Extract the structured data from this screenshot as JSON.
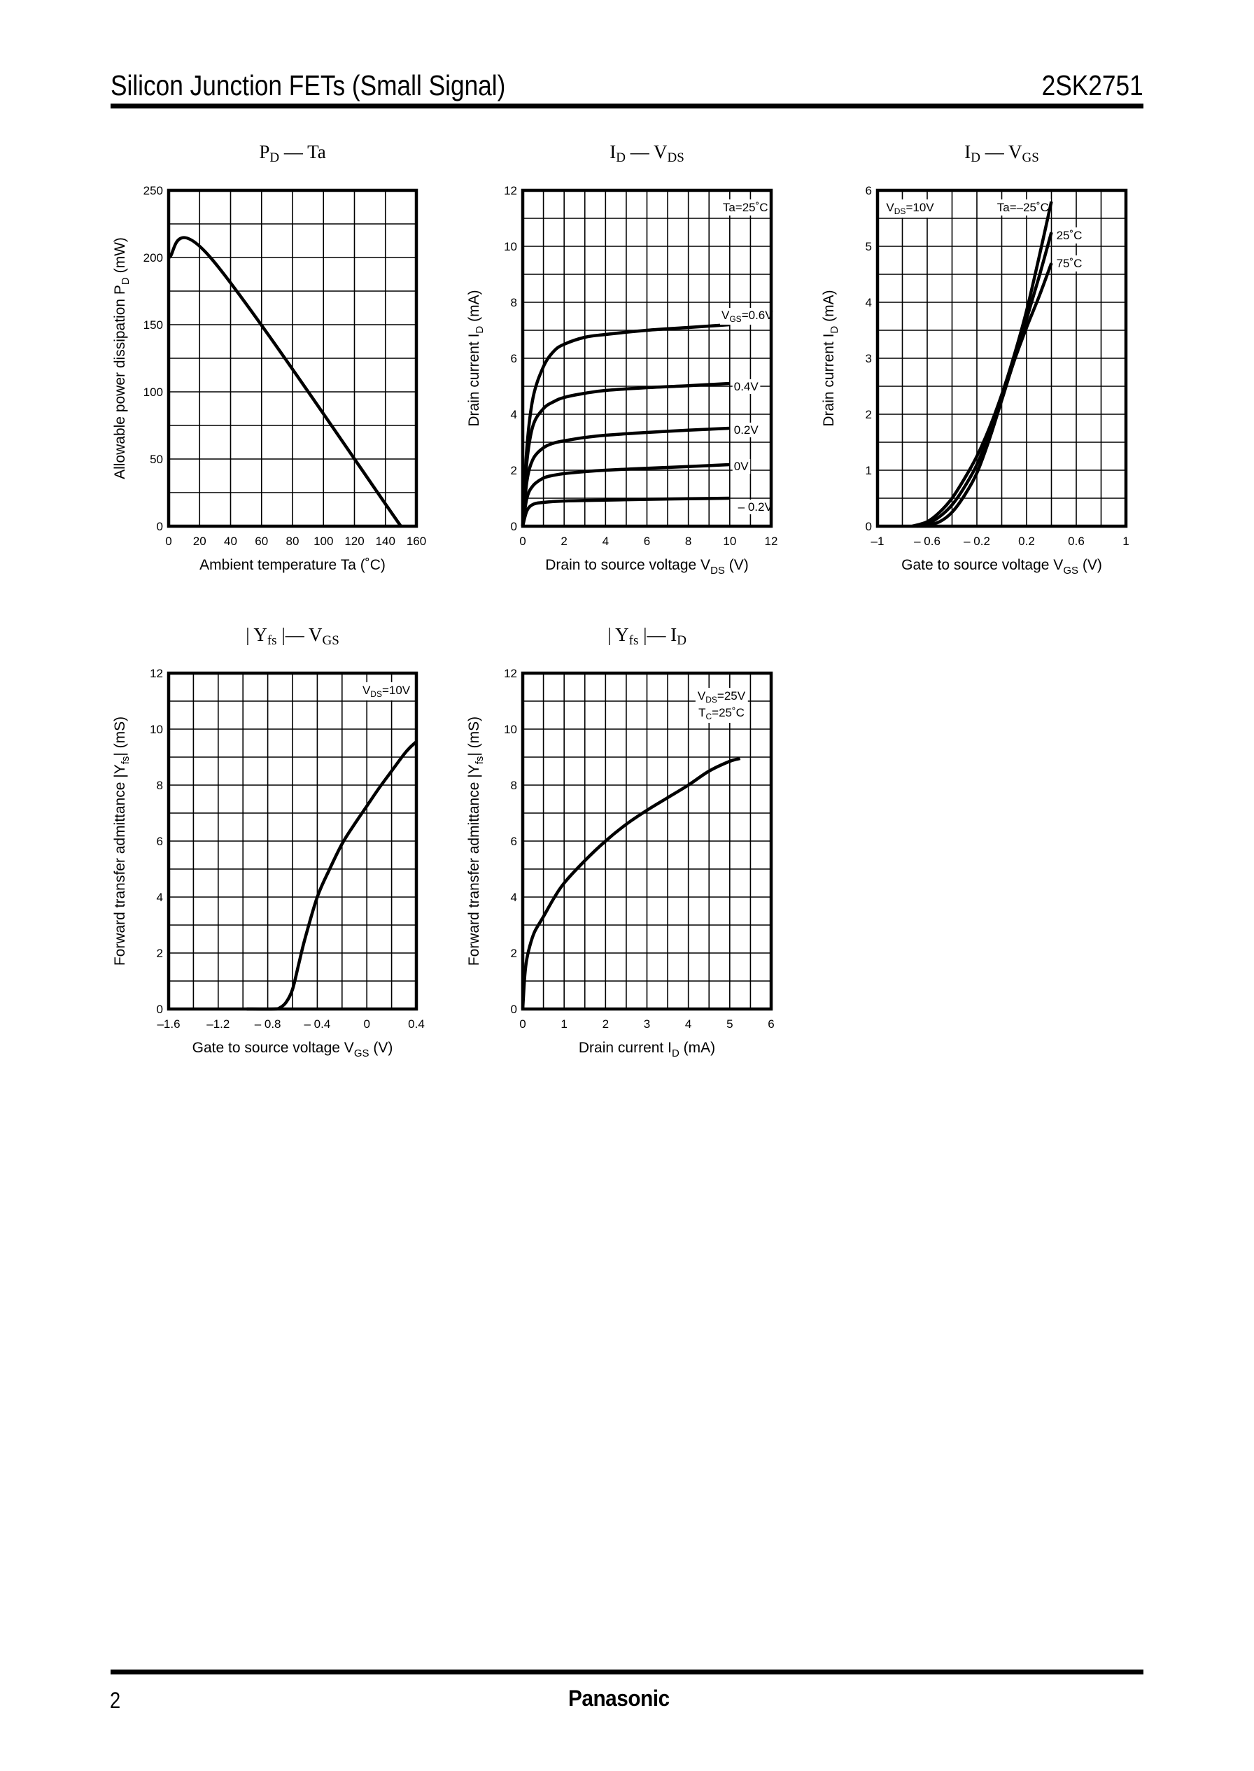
{
  "header": {
    "title": "Silicon Junction FETs (Small Signal)",
    "part_number": "2SK2751"
  },
  "footer": {
    "page_number": "2",
    "brand": "Panasonic"
  },
  "chart_data": [
    {
      "id": "pd-ta",
      "type": "line",
      "title": {
        "main": "P",
        "sub": "D",
        "dash": " — ",
        "main2": "Ta",
        "sub2": ""
      },
      "xlabel": {
        "text": "Ambient temperature   Ta   (˚C)",
        "sub": ""
      },
      "ylabel": {
        "text": "Allowable power dissipation   P",
        "sub": "D",
        "unit": "  (mW)"
      },
      "xlim": [
        0,
        160
      ],
      "ylim": [
        0,
        250
      ],
      "x_ticks": [
        0,
        20,
        40,
        60,
        80,
        100,
        120,
        140,
        160
      ],
      "x_tick_labels": [
        "0",
        "20",
        "40",
        "60",
        "80",
        "100",
        "120",
        "140",
        "160"
      ],
      "y_ticks": [
        0,
        50,
        100,
        150,
        200,
        250
      ],
      "y_tick_labels": [
        "0",
        "50",
        "100",
        "150",
        "200",
        "250"
      ],
      "grid": {
        "x_step": 20,
        "y_step": 25
      },
      "annotations": [],
      "series": [
        {
          "name": "PD",
          "x": [
            0,
            27,
            150
          ],
          "y": [
            200,
            200,
            0
          ]
        }
      ]
    },
    {
      "id": "id-vds",
      "type": "line",
      "title": {
        "main": "I",
        "sub": "D",
        "dash": " — ",
        "main2": "V",
        "sub2": "DS"
      },
      "xlabel": {
        "text": "Drain to source voltage   V",
        "sub": "DS",
        "unit": "   (V)"
      },
      "ylabel": {
        "text": "Drain current   I",
        "sub": "D",
        "unit": "  (mA)"
      },
      "xlim": [
        0,
        12
      ],
      "ylim": [
        0,
        12
      ],
      "x_ticks": [
        0,
        2,
        4,
        6,
        8,
        10,
        12
      ],
      "x_tick_labels": [
        "0",
        "2",
        "4",
        "6",
        "8",
        "10",
        "12"
      ],
      "y_ticks": [
        0,
        2,
        4,
        6,
        8,
        10,
        12
      ],
      "y_tick_labels": [
        "0",
        "2",
        "4",
        "6",
        "8",
        "10",
        "12"
      ],
      "grid": {
        "x_step": 1,
        "y_step": 1
      },
      "annotations": [
        {
          "text": "Ta=25˚C",
          "x": 11.85,
          "y": 11.4,
          "anchor": "end"
        }
      ],
      "series": [
        {
          "name": "VGS=0.6V",
          "label": "V",
          "label_sub": "GS",
          "label_rest": "=0.6V",
          "label_x": 9.6,
          "label_y": 7.55,
          "x": [
            0,
            0.2,
            0.5,
            1,
            1.5,
            2,
            3,
            4,
            6,
            8,
            10
          ],
          "y": [
            0,
            2.8,
            4.6,
            5.7,
            6.25,
            6.5,
            6.75,
            6.85,
            7.0,
            7.1,
            7.2
          ]
        },
        {
          "name": "VGS=0.4V",
          "label": "0.4V",
          "label_x": 10.2,
          "label_y": 5.0,
          "x": [
            0,
            0.2,
            0.5,
            1,
            1.5,
            2,
            3,
            4,
            6,
            8,
            10
          ],
          "y": [
            0,
            2.3,
            3.6,
            4.2,
            4.45,
            4.6,
            4.75,
            4.85,
            4.95,
            5.02,
            5.1
          ]
        },
        {
          "name": "VGS=0.2V",
          "label": "0.2V",
          "label_x": 10.2,
          "label_y": 3.45,
          "x": [
            0,
            0.2,
            0.5,
            1,
            1.5,
            2,
            3,
            4,
            6,
            8,
            10
          ],
          "y": [
            0,
            1.6,
            2.4,
            2.8,
            2.97,
            3.05,
            3.17,
            3.25,
            3.35,
            3.43,
            3.5
          ]
        },
        {
          "name": "VGS=0V",
          "label": "0V",
          "label_x": 10.2,
          "label_y": 2.15,
          "x": [
            0,
            0.2,
            0.5,
            1,
            1.5,
            2,
            3,
            4,
            6,
            8,
            10
          ],
          "y": [
            0,
            1.0,
            1.45,
            1.72,
            1.82,
            1.88,
            1.95,
            2.0,
            2.07,
            2.13,
            2.2
          ]
        },
        {
          "name": "VGS=-0.2V",
          "label": "– 0.2V",
          "label_x": 10.4,
          "label_y": 0.7,
          "x": [
            0,
            0.2,
            0.5,
            1,
            2,
            4,
            6,
            8,
            10
          ],
          "y": [
            0,
            0.55,
            0.78,
            0.85,
            0.9,
            0.93,
            0.96,
            0.98,
            1.0
          ]
        }
      ]
    },
    {
      "id": "id-vgs",
      "type": "line",
      "title": {
        "main": "I",
        "sub": "D",
        "dash": " — ",
        "main2": "V",
        "sub2": "GS"
      },
      "xlabel": {
        "text": "Gate to source voltage   V",
        "sub": "GS",
        "unit": "   (V)"
      },
      "ylabel": {
        "text": "Drain current   I",
        "sub": "D",
        "unit": "  (mA)"
      },
      "xlim": [
        -1,
        1
      ],
      "ylim": [
        0,
        6
      ],
      "x_ticks": [
        -1,
        -0.6,
        -0.2,
        0.2,
        0.6,
        1
      ],
      "x_tick_labels": [
        "–1",
        "– 0.6",
        "– 0.2",
        "0.2",
        "0.6",
        "1"
      ],
      "y_ticks": [
        0,
        1,
        2,
        3,
        4,
        5,
        6
      ],
      "y_tick_labels": [
        "0",
        "1",
        "2",
        "3",
        "4",
        "5",
        "6"
      ],
      "grid": {
        "x_step": 0.2,
        "y_step": 0.5
      },
      "annotations": [
        {
          "text": "V",
          "sub": "DS",
          "rest": "=10V",
          "x": -0.93,
          "y": 5.7,
          "anchor": "start"
        },
        {
          "text": "Ta=–25˚C",
          "x": 0.38,
          "y": 5.7,
          "anchor": "end"
        },
        {
          "text": "25˚C",
          "x": 0.44,
          "y": 5.2,
          "anchor": "start"
        },
        {
          "text": "75˚C",
          "x": 0.44,
          "y": 4.7,
          "anchor": "start"
        }
      ],
      "series": [
        {
          "name": "Ta=-25°C",
          "x": [
            -0.72,
            -0.6,
            -0.5,
            -0.4,
            -0.3,
            -0.2,
            -0.1,
            0,
            0.1,
            0.2,
            0.3,
            0.4
          ],
          "y": [
            0,
            0.08,
            0.25,
            0.5,
            0.85,
            1.25,
            1.75,
            2.35,
            3.05,
            3.85,
            4.8,
            5.8
          ]
        },
        {
          "name": "Ta=25°C",
          "x": [
            -0.68,
            -0.6,
            -0.5,
            -0.4,
            -0.3,
            -0.2,
            -0.1,
            0,
            0.1,
            0.2,
            0.3,
            0.4
          ],
          "y": [
            0,
            0.04,
            0.17,
            0.38,
            0.7,
            1.1,
            1.65,
            2.3,
            3.0,
            3.7,
            4.45,
            5.25
          ]
        },
        {
          "name": "Ta=75°C",
          "x": [
            -0.62,
            -0.5,
            -0.4,
            -0.3,
            -0.2,
            -0.1,
            0,
            0.1,
            0.2,
            0.3,
            0.4
          ],
          "y": [
            0,
            0.08,
            0.25,
            0.55,
            0.95,
            1.55,
            2.25,
            2.95,
            3.55,
            4.1,
            4.7
          ]
        }
      ]
    },
    {
      "id": "yfs-vgs",
      "type": "line",
      "title": {
        "main": "| Y",
        "sub": "fs",
        "dash": " |— ",
        "main2": "V",
        "sub2": "GS"
      },
      "xlabel": {
        "text": "Gate to source voltage   V",
        "sub": "GS",
        "unit": "   (V)"
      },
      "ylabel": {
        "text": "Forward transfer admittance   |Y",
        "sub": "fs",
        "unit": "|   (mS)"
      },
      "xlim": [
        -1.6,
        0.4
      ],
      "ylim": [
        0,
        12
      ],
      "x_ticks": [
        -1.6,
        -1.2,
        -0.8,
        -0.4,
        0,
        0.4
      ],
      "x_tick_labels": [
        "–1.6",
        "–1.2",
        "– 0.8",
        "– 0.4",
        "0",
        "0.4"
      ],
      "y_ticks": [
        0,
        2,
        4,
        6,
        8,
        10,
        12
      ],
      "y_tick_labels": [
        "0",
        "2",
        "4",
        "6",
        "8",
        "10",
        "12"
      ],
      "grid": {
        "x_step": 0.2,
        "y_step": 1
      },
      "annotations": [
        {
          "text": "V",
          "sub": "DS",
          "rest": "=10V",
          "x": 0.35,
          "y": 11.4,
          "anchor": "end"
        }
      ],
      "series": [
        {
          "name": "|Yfs|",
          "x": [
            -0.97,
            -0.75,
            -0.7,
            -0.65,
            -0.6,
            -0.55,
            -0.5,
            -0.4,
            -0.3,
            -0.2,
            -0.1,
            0,
            0.1,
            0.2,
            0.3,
            0.35,
            0.4
          ],
          "y": [
            0,
            0,
            0.05,
            0.25,
            0.7,
            1.6,
            2.5,
            4.0,
            5.0,
            5.9,
            6.6,
            7.25,
            7.9,
            8.5,
            9.1,
            9.35,
            9.55
          ]
        }
      ]
    },
    {
      "id": "yfs-id",
      "type": "line",
      "title": {
        "main": "| Y",
        "sub": "fs",
        "dash": " |— ",
        "main2": "I",
        "sub2": "D"
      },
      "xlabel": {
        "text": "Drain current   I",
        "sub": "D",
        "unit": "   (mA)"
      },
      "ylabel": {
        "text": "Forward transfer admittance   |Y",
        "sub": "fs",
        "unit": "|   (mS)"
      },
      "xlim": [
        0,
        6
      ],
      "ylim": [
        0,
        12
      ],
      "x_ticks": [
        0,
        1,
        2,
        3,
        4,
        5,
        6
      ],
      "x_tick_labels": [
        "0",
        "1",
        "2",
        "3",
        "4",
        "5",
        "6"
      ],
      "y_ticks": [
        0,
        2,
        4,
        6,
        8,
        10,
        12
      ],
      "y_tick_labels": [
        "0",
        "2",
        "4",
        "6",
        "8",
        "10",
        "12"
      ],
      "grid": {
        "x_step": 0.5,
        "y_step": 1
      },
      "annotations": [
        {
          "text": "V",
          "sub": "DS",
          "rest": "=25V",
          "x": 4.8,
          "y": 11.2,
          "anchor": "middle"
        },
        {
          "text": "T",
          "sub": "C",
          "rest": "=25˚C",
          "x": 4.8,
          "y": 10.6,
          "anchor": "middle"
        }
      ],
      "series": [
        {
          "name": "|Yfs|",
          "x": [
            0,
            0.05,
            0.1,
            0.2,
            0.3,
            0.5,
            0.75,
            1,
            1.5,
            2,
            2.5,
            3,
            3.5,
            4,
            4.5,
            5,
            5.25
          ],
          "y": [
            0,
            1.2,
            1.8,
            2.4,
            2.8,
            3.3,
            3.95,
            4.5,
            5.3,
            6.0,
            6.6,
            7.1,
            7.55,
            8.0,
            8.5,
            8.85,
            8.95
          ]
        }
      ]
    }
  ]
}
